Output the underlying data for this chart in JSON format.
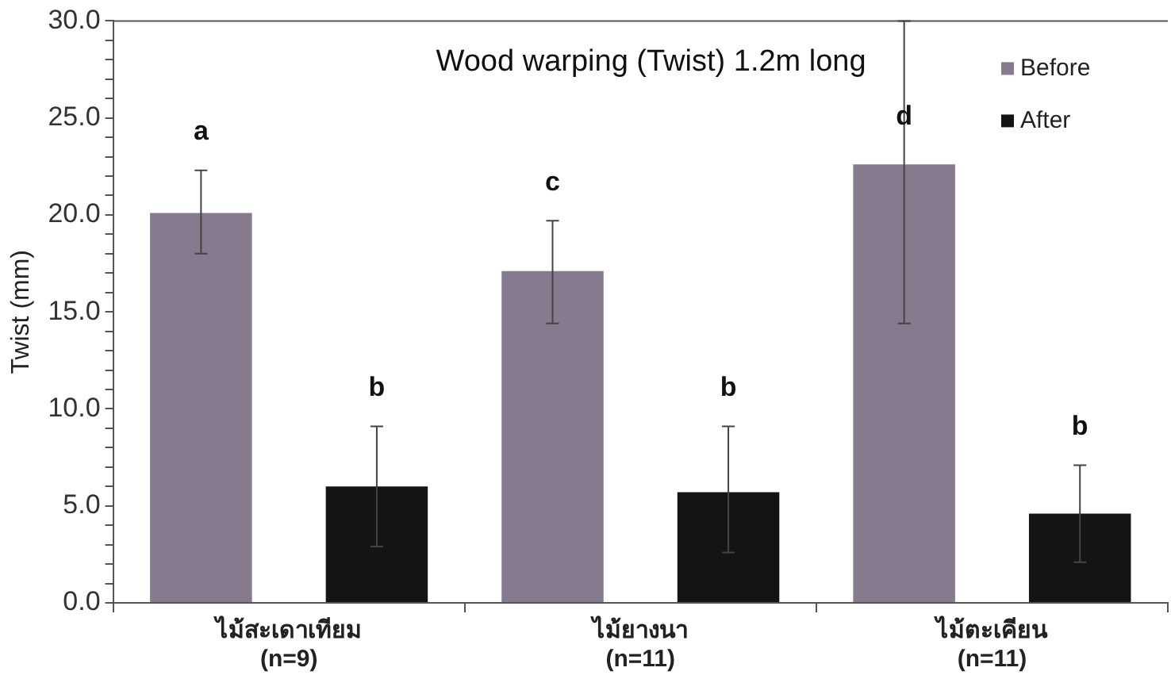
{
  "chart_data": {
    "type": "bar",
    "title": "Wood warping (Twist) 1.2m long",
    "ylabel": "Twist (mm)",
    "categories": [
      "ไม้สะเดาเทียม\n(n=9)",
      "ไม้ยางนา\n(n=11)",
      "ไม้ตะเคียน\n(n=11)"
    ],
    "series": [
      {
        "name": "Before",
        "color": "#857a8e",
        "values": [
          20.1,
          17.1,
          22.6
        ],
        "errors": [
          [
            18.0,
            22.3
          ],
          [
            14.4,
            19.7
          ],
          [
            14.4,
            30.0
          ]
        ]
      },
      {
        "name": "After",
        "color": "#141414",
        "values": [
          6.0,
          5.7,
          4.6
        ],
        "errors": [
          [
            2.9,
            9.1
          ],
          [
            2.6,
            9.1
          ],
          [
            2.1,
            7.1
          ]
        ]
      }
    ],
    "ylim": [
      0,
      30
    ],
    "yticks": [
      {
        "value": 0,
        "label": "0.0"
      },
      {
        "value": 1,
        "label": null
      },
      {
        "value": 2,
        "label": null
      },
      {
        "value": 3,
        "label": null
      },
      {
        "value": 4,
        "label": null
      },
      {
        "value": 5,
        "label": "5.0"
      },
      {
        "value": 6,
        "label": null
      },
      {
        "value": 7,
        "label": null
      },
      {
        "value": 8,
        "label": null
      },
      {
        "value": 9,
        "label": null
      },
      {
        "value": 10,
        "label": "10.0"
      },
      {
        "value": 11,
        "label": null
      },
      {
        "value": 12,
        "label": null
      },
      {
        "value": 13,
        "label": null
      },
      {
        "value": 14,
        "label": null
      },
      {
        "value": 15,
        "label": "15.0"
      },
      {
        "value": 16,
        "label": null
      },
      {
        "value": 17,
        "label": null
      },
      {
        "value": 18,
        "label": null
      },
      {
        "value": 19,
        "label": null
      },
      {
        "value": 20,
        "label": "20.0"
      },
      {
        "value": 21,
        "label": null
      },
      {
        "value": 22,
        "label": null
      },
      {
        "value": 23,
        "label": null
      },
      {
        "value": 24,
        "label": null
      },
      {
        "value": 25,
        "label": "25.0"
      },
      {
        "value": 26,
        "label": null
      },
      {
        "value": 27,
        "label": null
      },
      {
        "value": 28,
        "label": null
      },
      {
        "value": 29,
        "label": null
      },
      {
        "value": 30,
        "label": "30.0"
      }
    ],
    "annotations": [
      "a",
      "b",
      "c",
      "b",
      "d",
      "b"
    ],
    "grid": false,
    "legend": "top right"
  }
}
